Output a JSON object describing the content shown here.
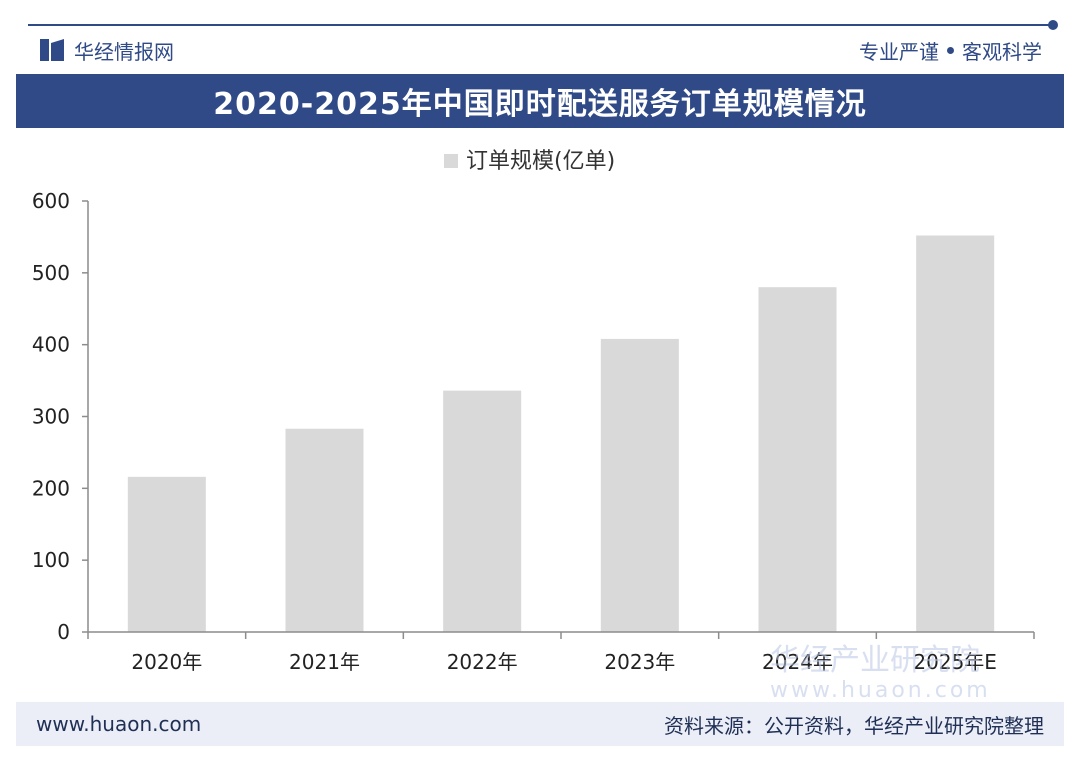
{
  "header": {
    "brand": "华经情报网",
    "tagline_left": "专业严谨",
    "tagline_right": "客观科学"
  },
  "title": "2020-2025年中国即时配送服务订单规模情况",
  "footer": {
    "website": "www.huaon.com",
    "source": "资料来源：公开资料，华经产业研究院整理"
  },
  "watermark": {
    "text": "华经产业研究院",
    "url": "www.huaon.com"
  },
  "colors": {
    "accent": "#2f4a86",
    "bar": "#d9d9d9",
    "axis": "#8c8c8c"
  },
  "chart_data": {
    "type": "bar",
    "title": "2020-2025年中国即时配送服务订单规模情况",
    "categories": [
      "2020年",
      "2021年",
      "2022年",
      "2023年",
      "2024年",
      "2025年E"
    ],
    "series": [
      {
        "name": "订单规模(亿单)",
        "values": [
          216,
          283,
          336,
          408,
          480,
          552
        ]
      }
    ],
    "ylim": [
      0,
      600
    ],
    "yticks": [
      0,
      100,
      200,
      300,
      400,
      500,
      600
    ],
    "ytick_labels": [
      "0",
      "100",
      "200",
      "300",
      "400",
      "500",
      "600"
    ],
    "legend": "top-center",
    "grid": false
  }
}
